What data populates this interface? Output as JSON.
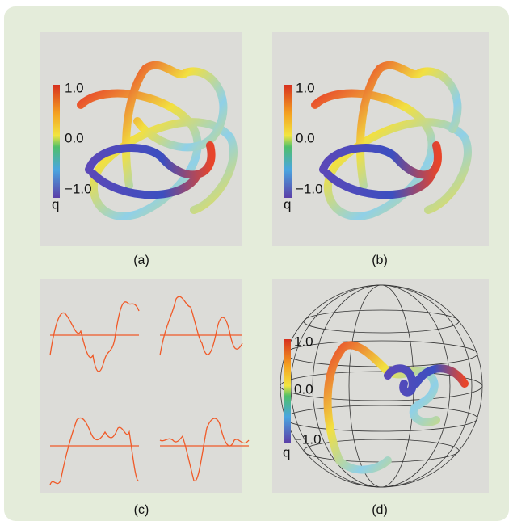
{
  "panels": [
    {
      "label": "(a)",
      "colorbar": {
        "ticks": [
          "1.0",
          "0.0",
          "−1.0"
        ],
        "symbol": "q"
      }
    },
    {
      "label": "(b)",
      "colorbar": {
        "ticks": [
          "1.0",
          "0.0",
          "−1.0"
        ],
        "symbol": "q"
      }
    },
    {
      "label": "(c)"
    },
    {
      "label": "(d)",
      "colorbar": {
        "ticks": [
          "1.0",
          "0.0",
          "−1.0"
        ],
        "symbol": "q"
      }
    }
  ]
}
